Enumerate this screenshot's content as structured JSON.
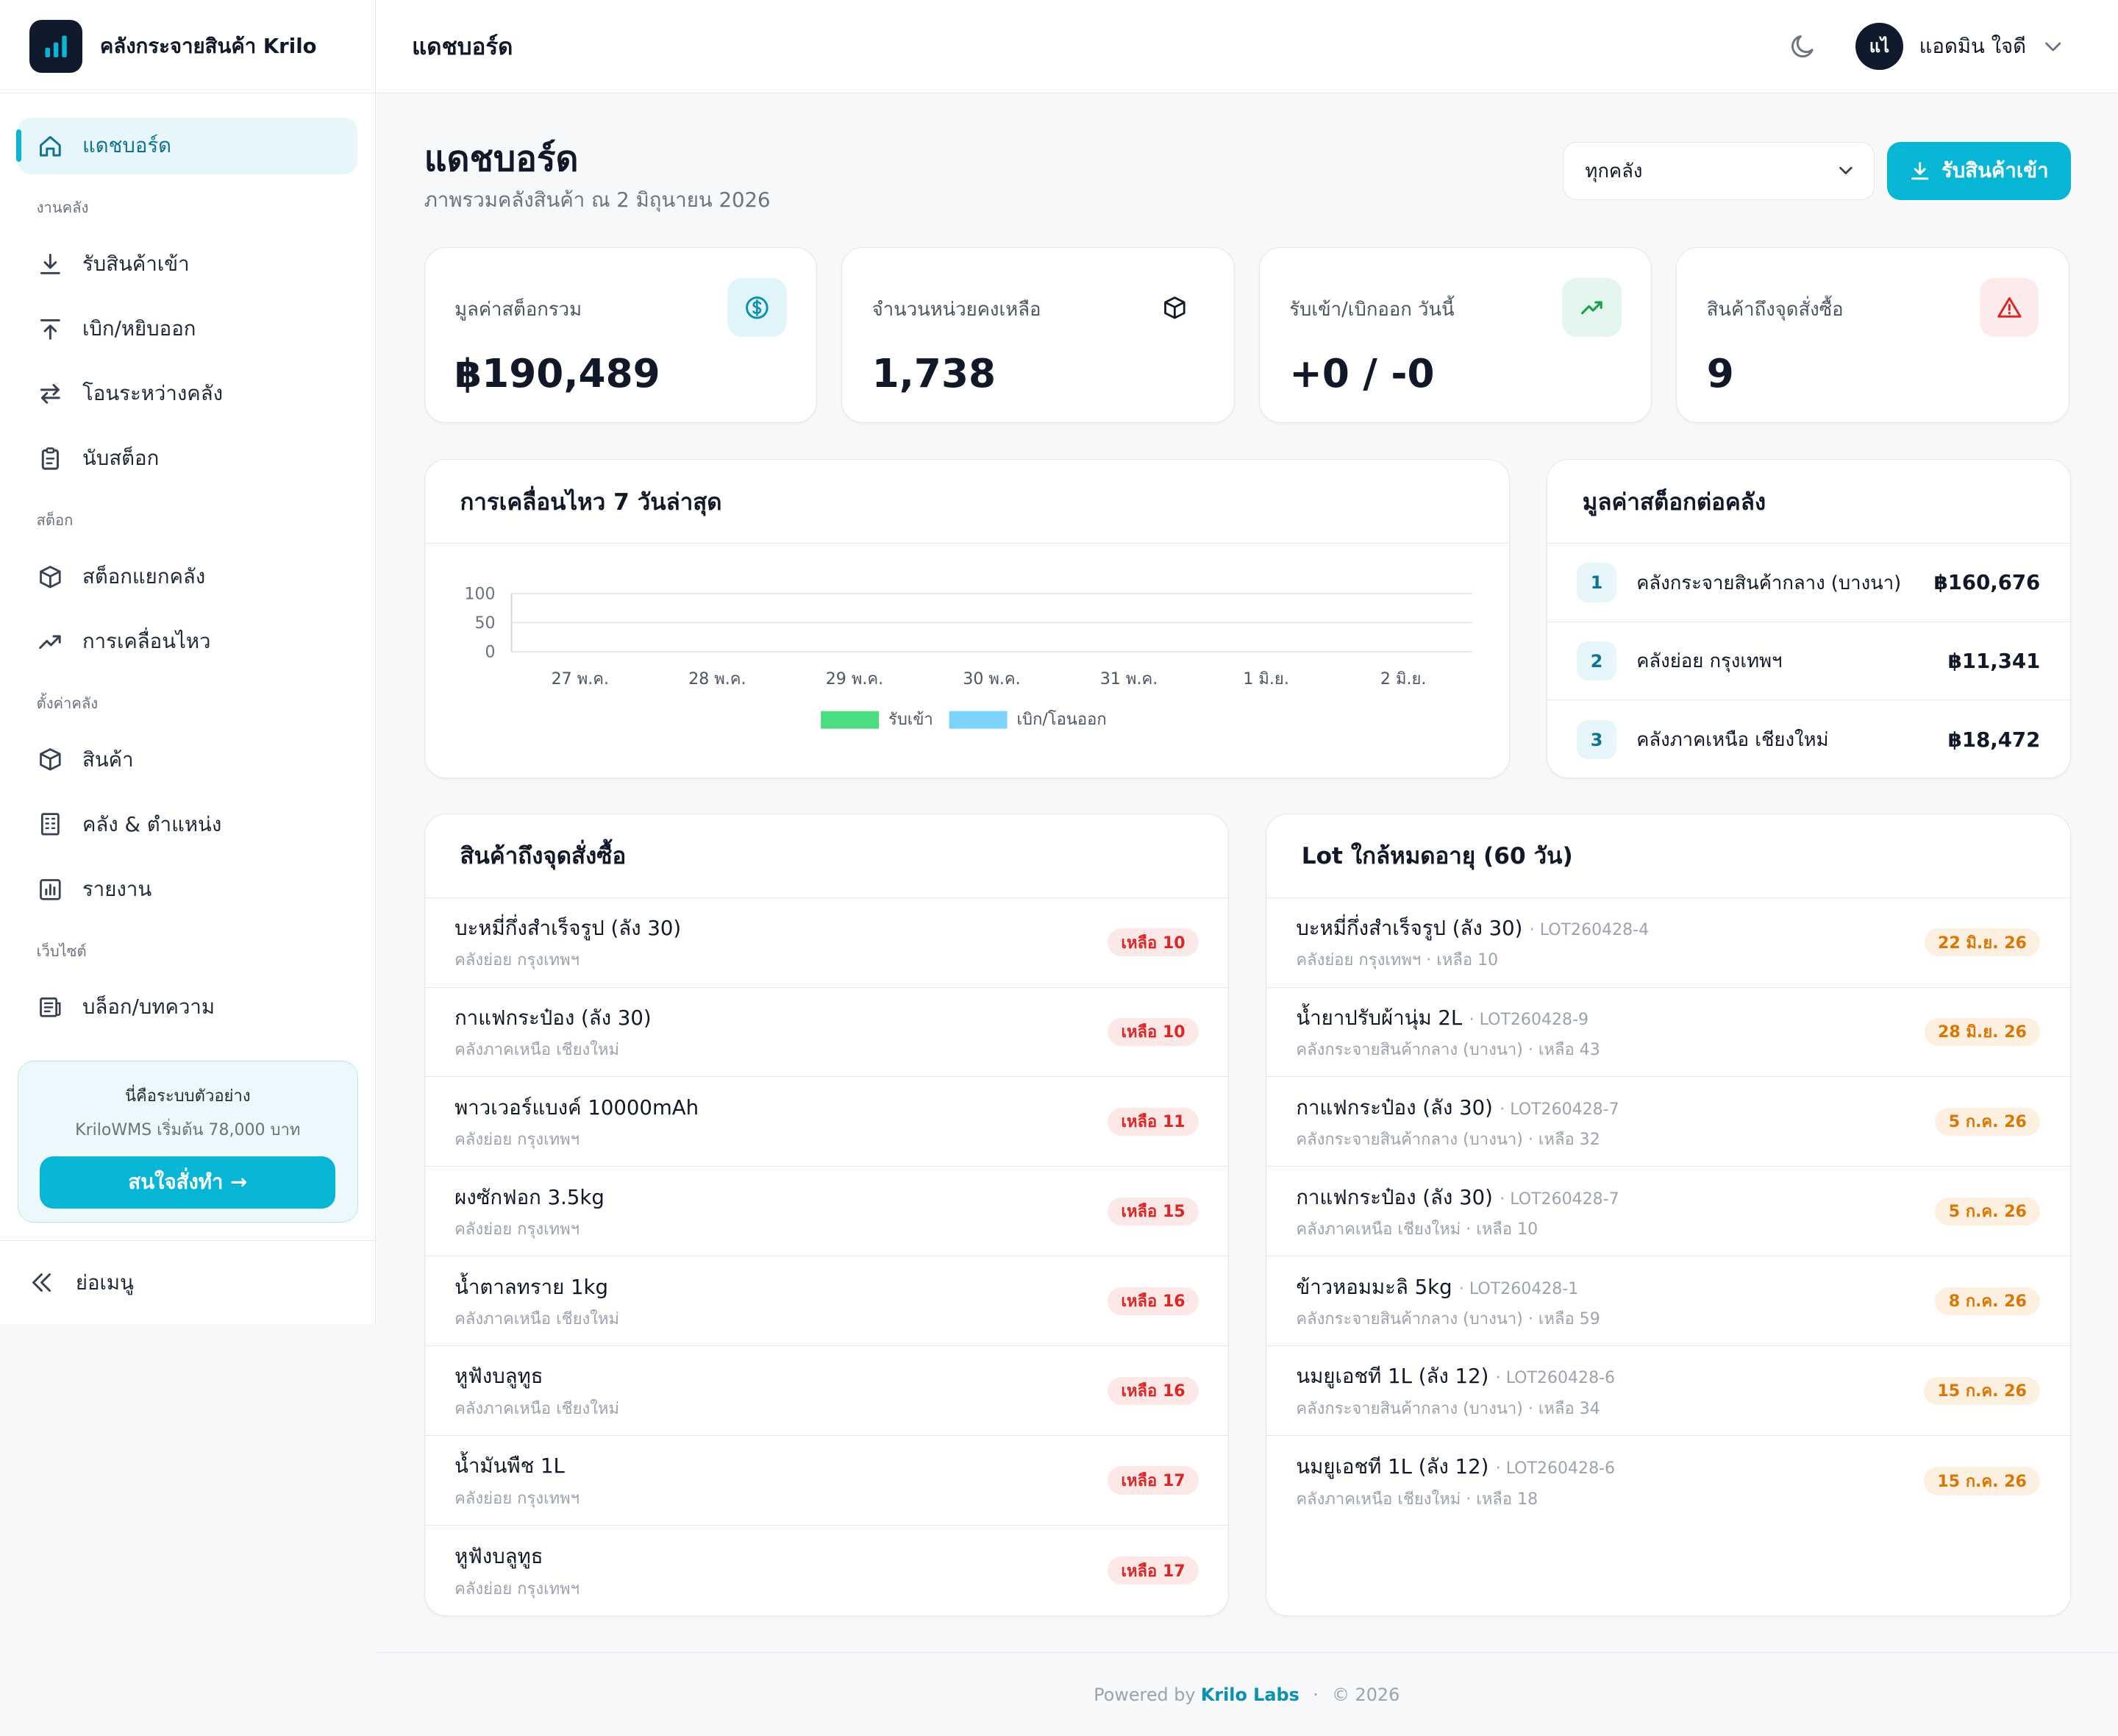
{
  "brand": {
    "name": "คลังกระจายสินค้า Krilo"
  },
  "topbar": {
    "title": "แดชบอร์ด",
    "user_initials": "แไ",
    "user_name": "แอดมิน ใจดี"
  },
  "sidebar": {
    "items": [
      {
        "label": "แดชบอร์ด",
        "icon": "home-icon",
        "active": true
      },
      {
        "section": "งานคลัง"
      },
      {
        "label": "รับสินค้าเข้า",
        "icon": "download-icon"
      },
      {
        "label": "เบิก/หยิบออก",
        "icon": "upload-icon"
      },
      {
        "label": "โอนระหว่างคลัง",
        "icon": "transfer-icon"
      },
      {
        "label": "นับสต็อก",
        "icon": "clipboard-icon"
      },
      {
        "section": "สต็อก"
      },
      {
        "label": "สต็อกแยกคลัง",
        "icon": "box-icon"
      },
      {
        "label": "การเคลื่อนไหว",
        "icon": "trend-icon"
      },
      {
        "section": "ตั้งค่าคลัง"
      },
      {
        "label": "สินค้า",
        "icon": "box-icon"
      },
      {
        "label": "คลัง & ตำแหน่ง",
        "icon": "building-icon"
      },
      {
        "label": "รายงาน",
        "icon": "report-icon"
      },
      {
        "section": "เว็บไซต์"
      },
      {
        "label": "บล็อก/บทความ",
        "icon": "newspaper-icon"
      }
    ],
    "promo": {
      "title": "นี่คือระบบตัวอย่าง",
      "subtitle": "KriloWMS เริ่มต้น 78,000 บาท",
      "button": "สนใจสั่งทำ →"
    },
    "collapse_label": "ย่อเมนู"
  },
  "header": {
    "title": "แดชบอร์ด",
    "subtitle": "ภาพรวมคลังสินค้า ณ 2 มิถุนายน 2026",
    "warehouse_select": "ทุกคลัง",
    "receive_button": "รับสินค้าเข้า"
  },
  "stats": [
    {
      "label": "มูลค่าสต็อกรวม",
      "value": "฿190,489",
      "icon": "dollar-icon",
      "icon_bg": "#e0f4f9",
      "icon_color": "#0891b2"
    },
    {
      "label": "จำนวนหน่วยคงเหลือ",
      "value": "1,738",
      "icon": "box-icon",
      "icon_bg": "#ffffff",
      "icon_color": "#111827"
    },
    {
      "label": "รับเข้า/เบิกออก วันนี้",
      "value": "+0 / -0",
      "icon": "trend-up-icon",
      "icon_bg": "#e3f5ec",
      "icon_color": "#16a34a"
    },
    {
      "label": "สินค้าถึงจุดสั่งซื้อ",
      "value": "9",
      "icon": "warning-icon",
      "icon_bg": "#fdeaea",
      "icon_color": "#dc2626"
    }
  ],
  "movement": {
    "title": "การเคลื่อนไหว 7 วันล่าสุด"
  },
  "chart_data": {
    "type": "bar",
    "categories": [
      "27 พ.ค.",
      "28 พ.ค.",
      "29 พ.ค.",
      "30 พ.ค.",
      "31 พ.ค.",
      "1 มิ.ย.",
      "2 มิ.ย."
    ],
    "series": [
      {
        "name": "รับเข้า",
        "values": [
          0,
          0,
          0,
          0,
          0,
          0,
          0
        ],
        "color": "#4ade80"
      },
      {
        "name": "เบิก/โอนออก",
        "values": [
          0,
          0,
          0,
          0,
          0,
          0,
          0
        ],
        "color": "#7dd3fc"
      }
    ],
    "yticks": [
      "0",
      "50",
      "100"
    ],
    "ylim": [
      0,
      100
    ],
    "legend": "bottom"
  },
  "warehouse_value": {
    "title": "มูลค่าสต็อกต่อคลัง",
    "rows": [
      {
        "rank": "1",
        "name": "คลังกระจายสินค้ากลาง (บางนา)",
        "value": "฿160,676"
      },
      {
        "rank": "2",
        "name": "คลังย่อย กรุงเทพฯ",
        "value": "฿11,341"
      },
      {
        "rank": "3",
        "name": "คลังภาคเหนือ เชียงใหม่",
        "value": "฿18,472"
      }
    ]
  },
  "reorder": {
    "title": "สินค้าถึงจุดสั่งซื้อ",
    "rows": [
      {
        "name": "บะหมี่กึ่งสำเร็จรูป (ลัง 30)",
        "warehouse": "คลังย่อย กรุงเทพฯ",
        "badge": "เหลือ 10"
      },
      {
        "name": "กาแฟกระป๋อง (ลัง 30)",
        "warehouse": "คลังภาคเหนือ เชียงใหม่",
        "badge": "เหลือ 10"
      },
      {
        "name": "พาวเวอร์แบงค์ 10000mAh",
        "warehouse": "คลังย่อย กรุงเทพฯ",
        "badge": "เหลือ 11"
      },
      {
        "name": "ผงซักฟอก 3.5kg",
        "warehouse": "คลังย่อย กรุงเทพฯ",
        "badge": "เหลือ 15"
      },
      {
        "name": "น้ำตาลทราย 1kg",
        "warehouse": "คลังภาคเหนือ เชียงใหม่",
        "badge": "เหลือ 16"
      },
      {
        "name": "หูฟังบลูทูธ",
        "warehouse": "คลังภาคเหนือ เชียงใหม่",
        "badge": "เหลือ 16"
      },
      {
        "name": "น้ำมันพืช 1L",
        "warehouse": "คลังย่อย กรุงเทพฯ",
        "badge": "เหลือ 17"
      },
      {
        "name": "หูฟังบลูทูธ",
        "warehouse": "คลังย่อย กรุงเทพฯ",
        "badge": "เหลือ 17"
      }
    ]
  },
  "expiring": {
    "title": "Lot ใกล้หมดอายุ (60 วัน)",
    "rows": [
      {
        "name": "บะหมี่กึ่งสำเร็จรูป (ลัง 30)",
        "lot": "· LOT260428-4",
        "sub": "คลังย่อย กรุงเทพฯ · เหลือ 10",
        "badge": "22 มิ.ย. 26"
      },
      {
        "name": "น้ำยาปรับผ้านุ่ม 2L",
        "lot": "· LOT260428-9",
        "sub": "คลังกระจายสินค้ากลาง (บางนา) · เหลือ 43",
        "badge": "28 มิ.ย. 26"
      },
      {
        "name": "กาแฟกระป๋อง (ลัง 30)",
        "lot": "· LOT260428-7",
        "sub": "คลังกระจายสินค้ากลาง (บางนา) · เหลือ 32",
        "badge": "5 ก.ค. 26"
      },
      {
        "name": "กาแฟกระป๋อง (ลัง 30)",
        "lot": "· LOT260428-7",
        "sub": "คลังภาคเหนือ เชียงใหม่ · เหลือ 10",
        "badge": "5 ก.ค. 26"
      },
      {
        "name": "ข้าวหอมมะลิ 5kg",
        "lot": "· LOT260428-1",
        "sub": "คลังกระจายสินค้ากลาง (บางนา) · เหลือ 59",
        "badge": "8 ก.ค. 26"
      },
      {
        "name": "นมยูเอชที 1L (ลัง 12)",
        "lot": "· LOT260428-6",
        "sub": "คลังกระจายสินค้ากลาง (บางนา) · เหลือ 34",
        "badge": "15 ก.ค. 26"
      },
      {
        "name": "นมยูเอชที 1L (ลัง 12)",
        "lot": "· LOT260428-6",
        "sub": "คลังภาคเหนือ เชียงใหม่ · เหลือ 18",
        "badge": "15 ก.ค. 26"
      }
    ]
  },
  "footer": {
    "powered": "Powered by",
    "brand": "Krilo Labs",
    "sep": "·",
    "copyright": "© 2026"
  }
}
